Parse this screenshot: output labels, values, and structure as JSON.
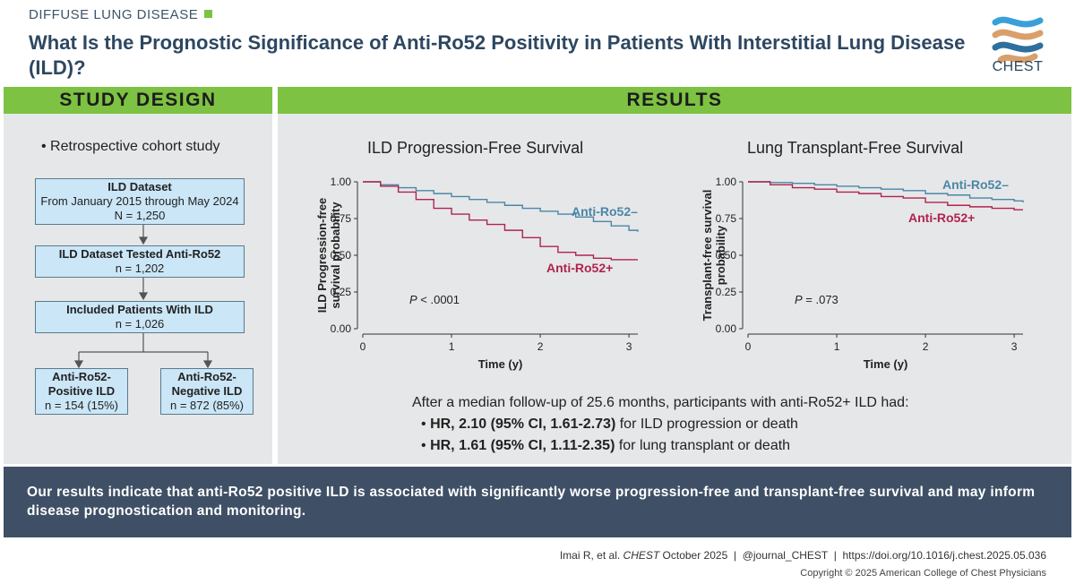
{
  "header": {
    "category": "DIFFUSE LUNG DISEASE",
    "title": "What Is the Prognostic Significance of Anti-Ro52 Positivity in Patients With Interstitial Lung Disease (ILD)?",
    "logo_text": "CHEST",
    "accent": "#7dc242",
    "title_color": "#2e4761"
  },
  "study_design": {
    "heading": "STUDY DESIGN",
    "bullet": "• Retrospective cohort study",
    "boxes": [
      {
        "l1": "ILD Dataset",
        "l2": "From January 2015 through May 2024",
        "l3": "N = 1,250"
      },
      {
        "l1": "ILD Dataset Tested Anti-Ro52",
        "l2": "n = 1,202"
      },
      {
        "l1": "Included Patients With ILD",
        "l2": "n = 1,026"
      }
    ],
    "split": [
      {
        "l1": "Anti-Ro52-",
        "l2": "Positive ILD",
        "l3": "n = 154 (15%)"
      },
      {
        "l1": "Anti-Ro52-",
        "l2": "Negative ILD",
        "l3": "n = 872 (85%)"
      }
    ]
  },
  "results": {
    "heading": "RESULTS",
    "summary_intro": "After a median follow-up of 25.6 months, participants with anti-Ro52+ ILD had:",
    "hr1_bold": "HR, 2.10 (95% CI, 1.61-2.73)",
    "hr1_rest": " for ILD progression or death",
    "hr2_bold": "HR, 1.61 (95% CI, 1.11-2.35)",
    "hr2_rest": " for lung transplant or death",
    "bullet_char": "•"
  },
  "conclusion": "Our results indicate that anti-Ro52 positive ILD is associated with significantly worse progression-free and transplant-free survival and may inform disease prognostication and monitoring.",
  "footer": {
    "cite_pre": "Imai R, et al. ",
    "cite_journal": "CHEST",
    "cite_post": " October 2025  |  @journal_CHEST  |  https://doi.org/10.1016/j.chest.2025.05.036",
    "copyright": "Copyright © 2025 American College of Chest Physicians"
  },
  "chart_data": [
    {
      "type": "line",
      "title": "ILD Progression-Free Survival",
      "xlabel": "Time (y)",
      "ylabel_lines": [
        "ILD Progression-free",
        "survival probability"
      ],
      "xlim": [
        0,
        3.1
      ],
      "ylim": [
        0,
        1.0
      ],
      "x_ticks": [
        "0",
        "1",
        "2",
        "3"
      ],
      "y_ticks": [
        "0.00",
        "0.25",
        "0.50",
        "0.75",
        "1.00"
      ],
      "annotation_italic": "P",
      "annotation_rest": " < .0001",
      "series": [
        {
          "name": "Anti-Ro52–",
          "color": "#4a86a8",
          "x": [
            0,
            0.2,
            0.4,
            0.6,
            0.8,
            1.0,
            1.2,
            1.4,
            1.6,
            1.8,
            2.0,
            2.2,
            2.4,
            2.6,
            2.8,
            3.0,
            3.1
          ],
          "y": [
            1.0,
            0.98,
            0.96,
            0.94,
            0.92,
            0.9,
            0.88,
            0.86,
            0.84,
            0.82,
            0.8,
            0.78,
            0.76,
            0.73,
            0.7,
            0.67,
            0.66
          ]
        },
        {
          "name": "Anti-Ro52+",
          "color": "#b0234f",
          "x": [
            0,
            0.2,
            0.4,
            0.6,
            0.8,
            1.0,
            1.2,
            1.4,
            1.6,
            1.8,
            2.0,
            2.2,
            2.4,
            2.6,
            2.8,
            3.0,
            3.1
          ],
          "y": [
            1.0,
            0.97,
            0.93,
            0.88,
            0.82,
            0.78,
            0.74,
            0.71,
            0.67,
            0.62,
            0.56,
            0.52,
            0.5,
            0.48,
            0.47,
            0.47,
            0.47
          ]
        }
      ]
    },
    {
      "type": "line",
      "title": "Lung Transplant-Free Survival",
      "xlabel": "Time (y)",
      "ylabel_lines": [
        "Transplant-free survival",
        "probability"
      ],
      "xlim": [
        0,
        3.1
      ],
      "ylim": [
        0,
        1.0
      ],
      "x_ticks": [
        "0",
        "1",
        "2",
        "3"
      ],
      "y_ticks": [
        "0.00",
        "0.25",
        "0.50",
        "0.75",
        "1.00"
      ],
      "annotation_italic": "P",
      "annotation_rest": " = .073",
      "series": [
        {
          "name": "Anti-Ro52–",
          "color": "#4a86a8",
          "x": [
            0,
            0.25,
            0.5,
            0.75,
            1.0,
            1.25,
            1.5,
            1.75,
            2.0,
            2.25,
            2.5,
            2.75,
            3.0,
            3.1
          ],
          "y": [
            1.0,
            0.995,
            0.99,
            0.98,
            0.97,
            0.96,
            0.95,
            0.94,
            0.92,
            0.91,
            0.89,
            0.88,
            0.87,
            0.86
          ]
        },
        {
          "name": "Anti-Ro52+",
          "color": "#b0234f",
          "x": [
            0,
            0.25,
            0.5,
            0.75,
            1.0,
            1.25,
            1.5,
            1.75,
            2.0,
            2.25,
            2.5,
            2.75,
            3.0,
            3.1
          ],
          "y": [
            1.0,
            0.98,
            0.96,
            0.95,
            0.93,
            0.92,
            0.9,
            0.89,
            0.86,
            0.84,
            0.83,
            0.82,
            0.81,
            0.81
          ]
        }
      ]
    }
  ]
}
